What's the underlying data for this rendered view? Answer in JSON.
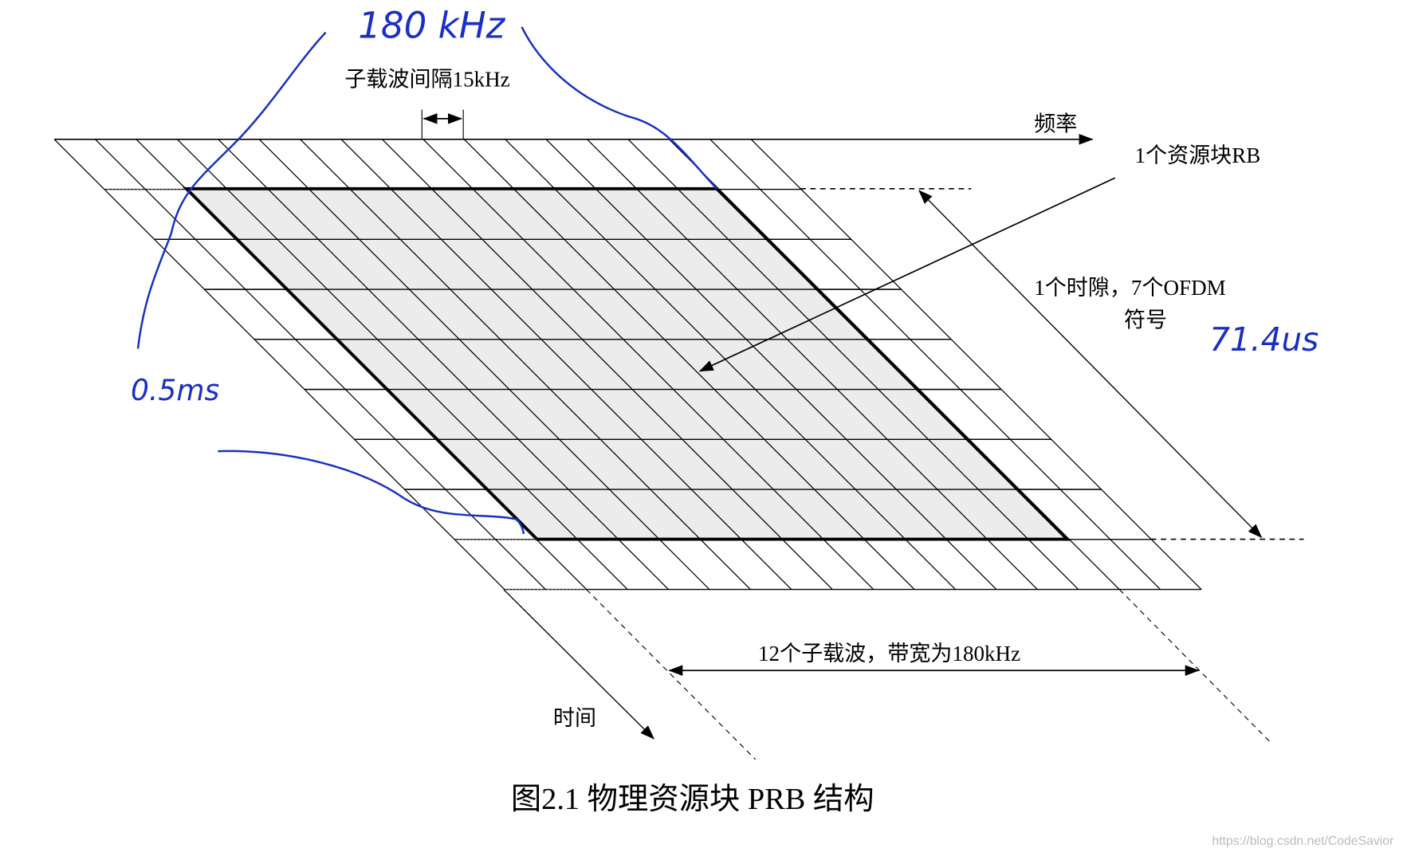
{
  "diagram": {
    "labels": {
      "subcarrier_spacing": "子载波间隔15kHz",
      "frequency": "频率",
      "resource_block": "1个资源块RB",
      "slot_line1": "1个时隙，7个OFDM",
      "slot_line2": "符号",
      "subcarriers": "12个子载波，带宽为180kHz",
      "time": "时间"
    },
    "handwritten": {
      "top": "180 kHz",
      "left": "0.5ms",
      "right": "71.4us"
    },
    "caption": "图2.1  物理资源块 PRB 结构",
    "watermark": "https://blog.csdn.net/CodeSavior"
  }
}
